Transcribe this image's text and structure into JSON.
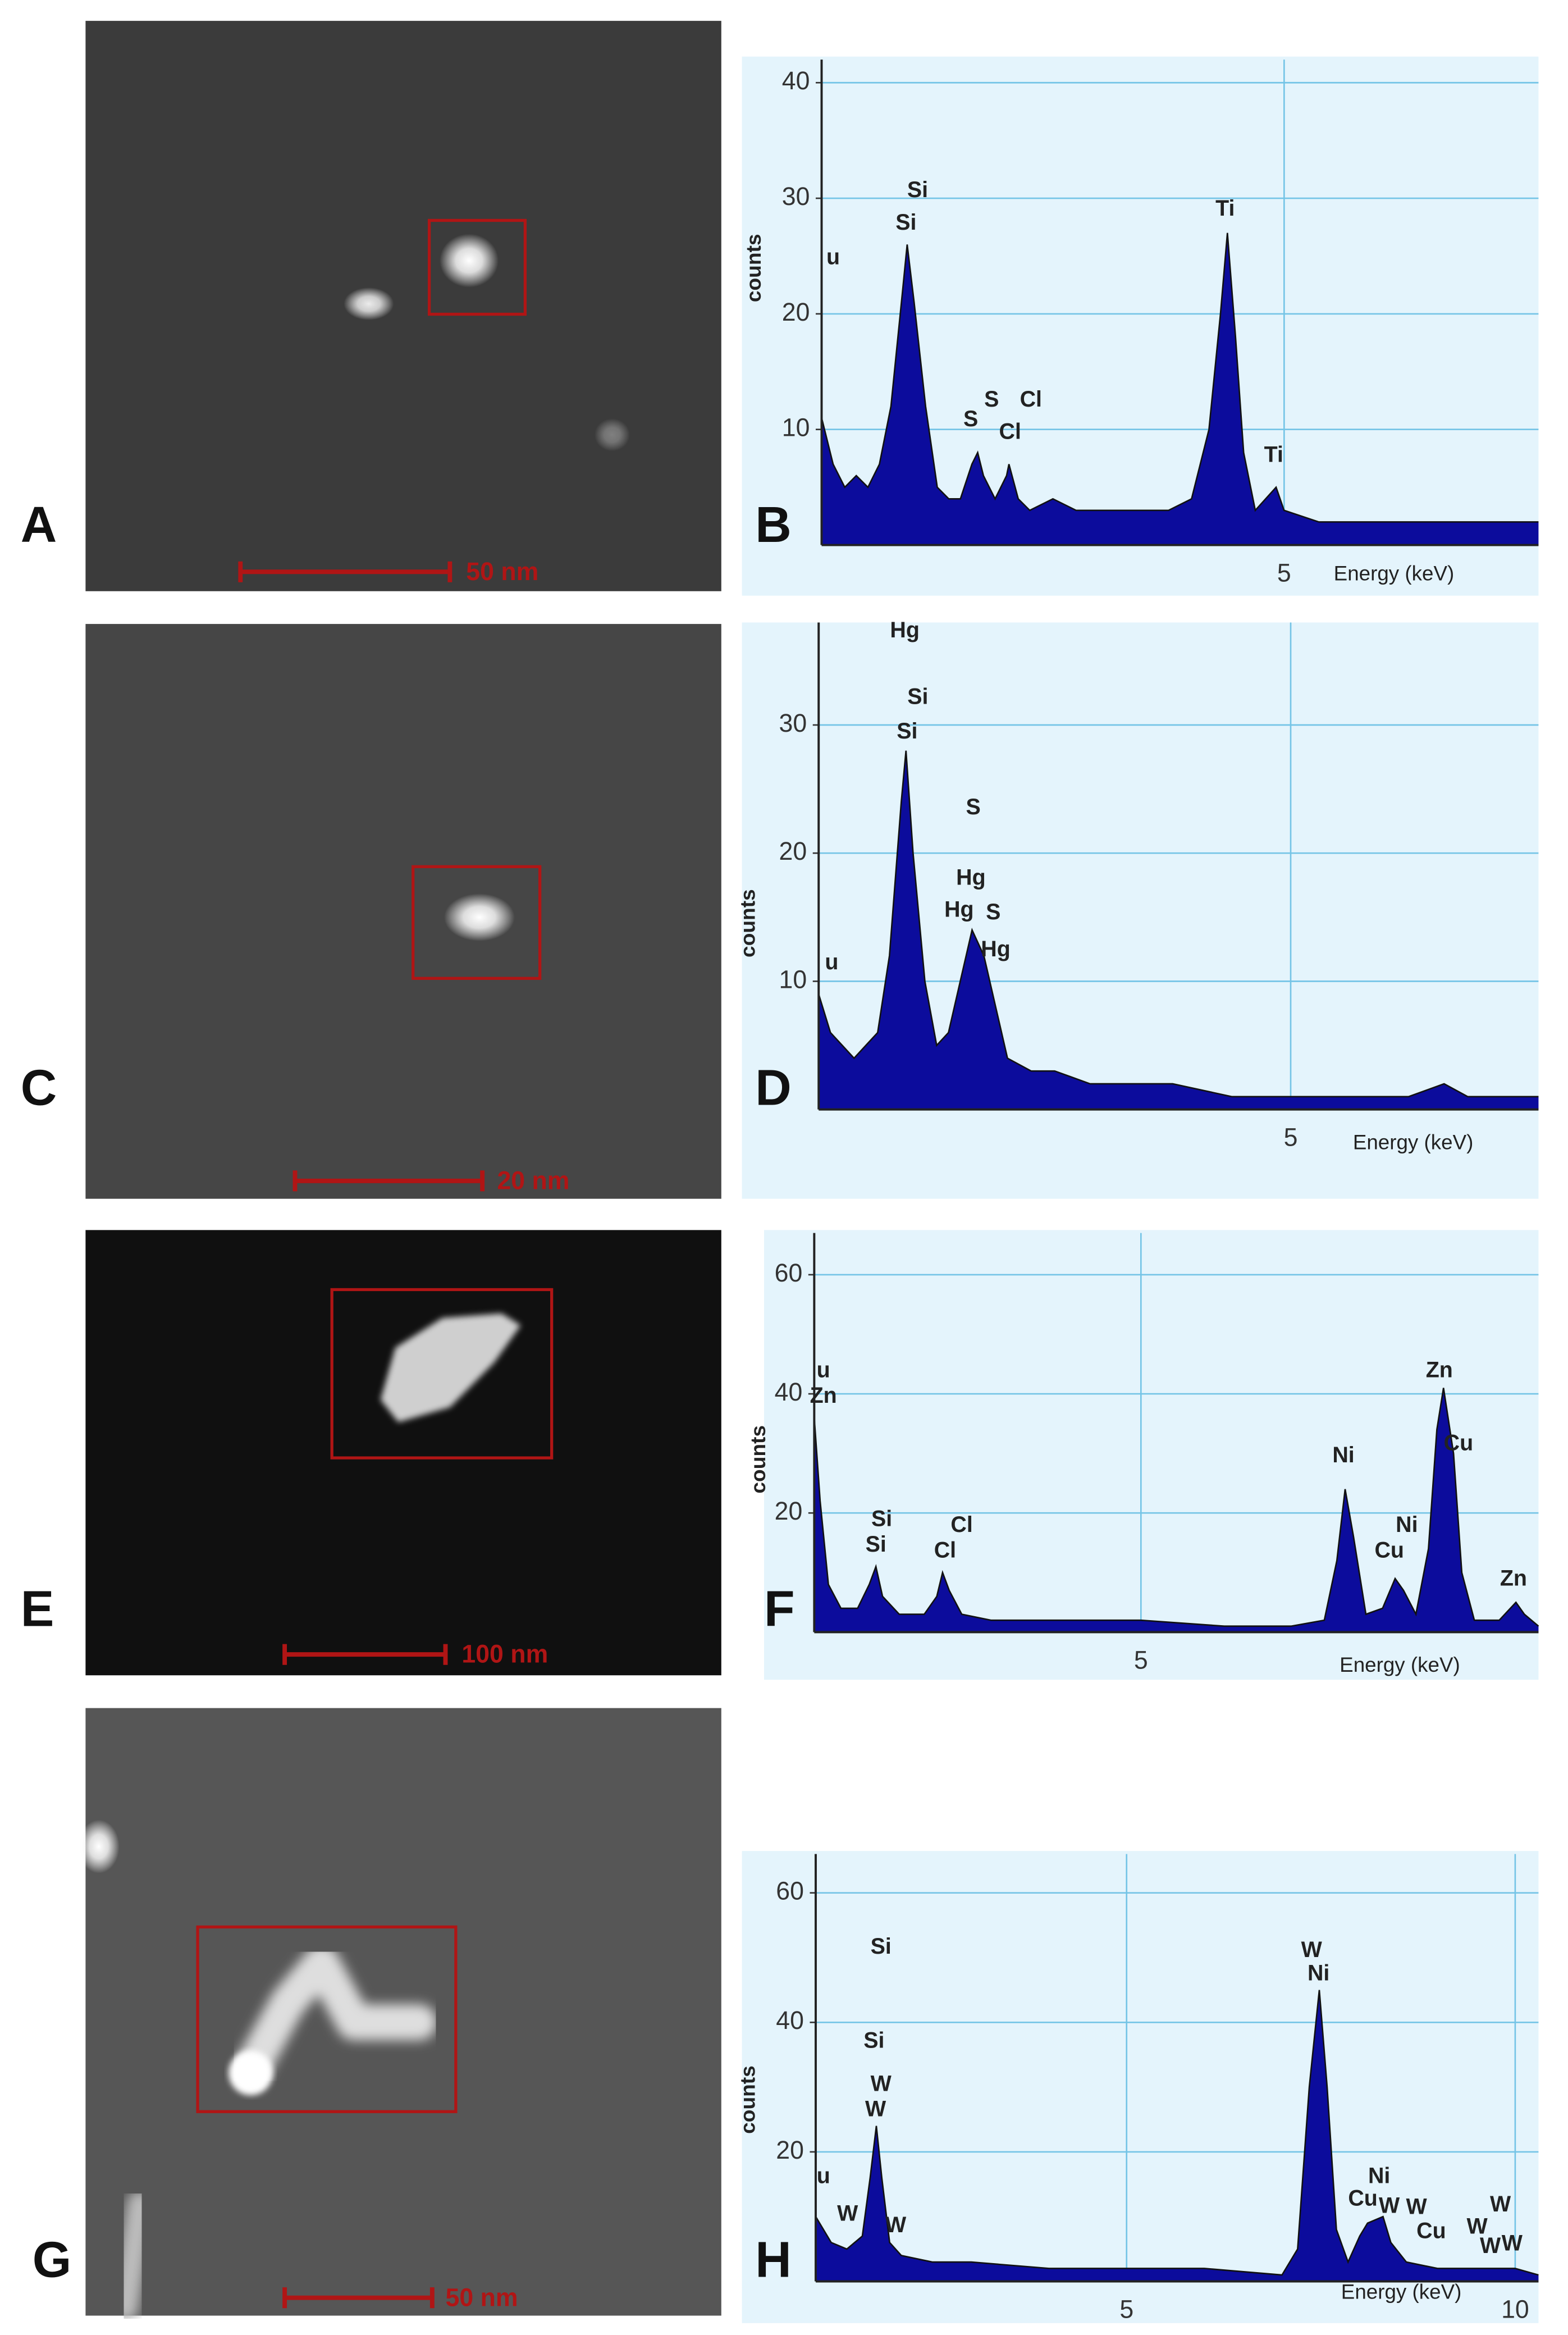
{
  "micrographs": [
    {
      "label": "A",
      "scale_bar": "50 nm"
    },
    {
      "label": "C",
      "scale_bar": "20 nm"
    },
    {
      "label": "E",
      "scale_bar": "100 nm"
    },
    {
      "label": "G",
      "scale_bar": "50 nm"
    }
  ],
  "chart_data": [
    {
      "type": "area",
      "panel_label": "B",
      "x_label": "Energy (keV)",
      "y_label": "counts",
      "color": "#0c0c9c",
      "grid": true,
      "xlim": [
        1.0,
        7.2
      ],
      "ylim": [
        0,
        42
      ],
      "xticks": [
        5
      ],
      "yticks": [
        10,
        20,
        30,
        40
      ],
      "x": [
        1.0,
        1.1,
        1.2,
        1.3,
        1.4,
        1.5,
        1.6,
        1.7,
        1.74,
        1.8,
        1.9,
        2.0,
        2.1,
        2.2,
        2.3,
        2.35,
        2.4,
        2.5,
        2.6,
        2.62,
        2.7,
        2.8,
        3.0,
        3.2,
        3.5,
        3.8,
        4.0,
        4.2,
        4.35,
        4.45,
        4.51,
        4.58,
        4.65,
        4.75,
        4.93,
        5.0,
        5.3,
        5.6,
        6.0,
        6.4,
        6.8,
        7.2
      ],
      "values": [
        11,
        7,
        5,
        6,
        5,
        7,
        12,
        22,
        26,
        21,
        12,
        5,
        4,
        4,
        7,
        8,
        6,
        4,
        6,
        7,
        4,
        3,
        4,
        3,
        3,
        3,
        3,
        4,
        10,
        20,
        27,
        18,
        8,
        3,
        5,
        3,
        2,
        2,
        2,
        2,
        2,
        2
      ],
      "annotations": [
        {
          "text": "u",
          "x": 1.1,
          "y": 24.8
        },
        {
          "text": "Si",
          "x": 1.83,
          "y": 30.6
        },
        {
          "text": "Si",
          "x": 1.73,
          "y": 27.8
        },
        {
          "text": "S",
          "x": 2.29,
          "y": 10.8
        },
        {
          "text": "S",
          "x": 2.47,
          "y": 12.5
        },
        {
          "text": "Cl",
          "x": 2.63,
          "y": 9.7
        },
        {
          "text": "Cl",
          "x": 2.81,
          "y": 12.5
        },
        {
          "text": "Ti",
          "x": 4.49,
          "y": 29
        },
        {
          "text": "Ti",
          "x": 4.91,
          "y": 7.7
        }
      ]
    },
    {
      "type": "area",
      "panel_label": "D",
      "x_label": "Energy (keV)",
      "y_label": "counts",
      "color": "#0c0c9c",
      "grid": true,
      "xlim": [
        1.0,
        7.1
      ],
      "ylim": [
        0,
        38
      ],
      "xticks": [
        5
      ],
      "yticks": [
        10,
        20,
        30
      ],
      "x": [
        1.0,
        1.1,
        1.2,
        1.3,
        1.4,
        1.5,
        1.6,
        1.7,
        1.74,
        1.8,
        1.9,
        2.0,
        2.1,
        2.2,
        2.3,
        2.4,
        2.5,
        2.6,
        2.8,
        3.0,
        3.3,
        3.6,
        4.0,
        4.5,
        5.0,
        5.5,
        6.0,
        6.3,
        6.5,
        7.1
      ],
      "values": [
        9,
        6,
        5,
        4,
        5,
        6,
        12,
        24,
        28,
        20,
        10,
        5,
        6,
        10,
        14,
        12,
        8,
        4,
        3,
        3,
        2,
        2,
        2,
        1,
        1,
        1,
        1,
        2,
        1,
        1
      ],
      "annotations": [
        {
          "text": "Hg",
          "x": 1.73,
          "y": 37.3
        },
        {
          "text": "Si",
          "x": 1.84,
          "y": 32.1
        },
        {
          "text": "Si",
          "x": 1.75,
          "y": 29.4
        },
        {
          "text": "S",
          "x": 2.31,
          "y": 23.5
        },
        {
          "text": "Hg",
          "x": 2.29,
          "y": 18
        },
        {
          "text": "Hg",
          "x": 2.19,
          "y": 15.5
        },
        {
          "text": "S",
          "x": 2.48,
          "y": 15.3
        },
        {
          "text": "Hg",
          "x": 2.5,
          "y": 12.4
        },
        {
          "text": "u",
          "x": 1.11,
          "y": 11.4
        }
      ]
    },
    {
      "type": "area",
      "panel_label": "F",
      "x_label": "Energy (keV)",
      "y_label": "counts",
      "color": "#0c0c9c",
      "grid": true,
      "xlim": [
        1.08,
        9.77
      ],
      "ylim": [
        0,
        67
      ],
      "xticks": [
        5
      ],
      "yticks": [
        20,
        40,
        60
      ],
      "x": [
        1.08,
        1.15,
        1.25,
        1.4,
        1.6,
        1.74,
        1.82,
        1.9,
        2.1,
        2.4,
        2.55,
        2.62,
        2.7,
        2.85,
        3.2,
        4.0,
        5.0,
        6.0,
        6.8,
        7.2,
        7.35,
        7.45,
        7.55,
        7.7,
        7.9,
        8.05,
        8.15,
        8.3,
        8.45,
        8.55,
        8.63,
        8.75,
        8.85,
        9.0,
        9.3,
        9.5,
        9.6,
        9.77
      ],
      "values": [
        36,
        22,
        8,
        4,
        4,
        8,
        11,
        6,
        3,
        3,
        6,
        10,
        7,
        3,
        2,
        2,
        2,
        1,
        1,
        2,
        12,
        24,
        16,
        3,
        4,
        9,
        7,
        3,
        14,
        34,
        41,
        30,
        10,
        2,
        2,
        5,
        3,
        1
      ],
      "annotations": [
        {
          "text": "u",
          "x": 1.19,
          "y": 43.8
        },
        {
          "text": "Zn",
          "x": 1.19,
          "y": 39.5
        },
        {
          "text": "Si",
          "x": 1.89,
          "y": 18.8
        },
        {
          "text": "Si",
          "x": 1.82,
          "y": 14.5
        },
        {
          "text": "Cl",
          "x": 2.85,
          "y": 17.8
        },
        {
          "text": "Cl",
          "x": 2.65,
          "y": 13.5
        },
        {
          "text": "Ni",
          "x": 7.43,
          "y": 29.5
        },
        {
          "text": "Ni",
          "x": 8.19,
          "y": 17.8
        },
        {
          "text": "Cu",
          "x": 7.98,
          "y": 13.5
        },
        {
          "text": "Zn",
          "x": 8.58,
          "y": 43.8
        },
        {
          "text": "Cu",
          "x": 8.81,
          "y": 31.5
        },
        {
          "text": "Zn",
          "x": 9.47,
          "y": 8.8
        }
      ]
    },
    {
      "type": "area",
      "panel_label": "H",
      "x_label": "Energy (keV)",
      "y_label": "counts",
      "color": "#0c0c9c",
      "grid": true,
      "xlim": [
        1.0,
        10.3
      ],
      "ylim": [
        0,
        66
      ],
      "xticks": [
        5,
        10
      ],
      "yticks": [
        20,
        40,
        60
      ],
      "x": [
        1.0,
        1.2,
        1.4,
        1.6,
        1.7,
        1.78,
        1.85,
        1.95,
        2.1,
        2.5,
        3.0,
        4.0,
        5.0,
        6.0,
        7.0,
        7.2,
        7.35,
        7.48,
        7.58,
        7.7,
        7.85,
        8.0,
        8.1,
        8.3,
        8.4,
        8.6,
        9.0,
        9.5,
        10.0,
        10.3
      ],
      "values": [
        10,
        6,
        5,
        7,
        16,
        24,
        16,
        6,
        4,
        3,
        3,
        2,
        2,
        2,
        1,
        5,
        30,
        45,
        30,
        8,
        3,
        7,
        9,
        10,
        6,
        3,
        2,
        2,
        2,
        1
      ],
      "annotations": [
        {
          "text": "Si",
          "x": 1.84,
          "y": 51.5
        },
        {
          "text": "Si",
          "x": 1.75,
          "y": 37
        },
        {
          "text": "W",
          "x": 1.84,
          "y": 30.3
        },
        {
          "text": "W",
          "x": 1.77,
          "y": 26.4
        },
        {
          "text": "u",
          "x": 1.1,
          "y": 16.1
        },
        {
          "text": "W",
          "x": 1.41,
          "y": 10.3
        },
        {
          "text": "W",
          "x": 2.03,
          "y": 8.5
        },
        {
          "text": "W",
          "x": 7.38,
          "y": 51
        },
        {
          "text": "Ni",
          "x": 7.47,
          "y": 47.4
        },
        {
          "text": "Ni",
          "x": 8.25,
          "y": 16.1
        },
        {
          "text": "Cu",
          "x": 8.04,
          "y": 12.6
        },
        {
          "text": "W",
          "x": 8.38,
          "y": 11.5
        },
        {
          "text": "W",
          "x": 8.73,
          "y": 11.3
        },
        {
          "text": "Cu",
          "x": 8.92,
          "y": 7.6
        },
        {
          "text": "W",
          "x": 9.81,
          "y": 11.7
        },
        {
          "text": "W",
          "x": 9.51,
          "y": 8.3
        },
        {
          "text": "W",
          "x": 9.68,
          "y": 5.3
        },
        {
          "text": "W",
          "x": 9.96,
          "y": 5.7
        }
      ]
    }
  ]
}
